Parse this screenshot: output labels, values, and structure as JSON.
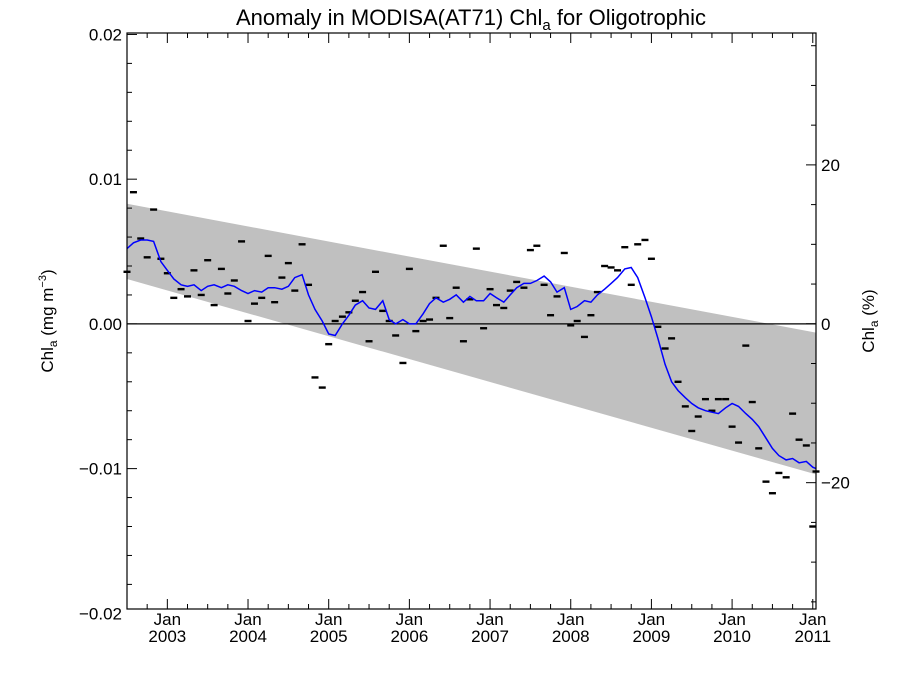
{
  "chart_data": {
    "type": "scatter",
    "title": {
      "main": "Anomaly in MODISA(AT71) Chl",
      "sub": "a",
      "tail": " for Oligotrophic"
    },
    "ylabel": {
      "main": "Chl",
      "sub": "a",
      "tail": " (mg m",
      "sup": "−3",
      "end": ")"
    },
    "y2label": {
      "main": "Chl",
      "sub": "a",
      "tail": " (%)"
    },
    "ylim": [
      -0.0197,
      0.0201
    ],
    "y2lim": [
      -35.9,
      36.6
    ],
    "xlim": [
      2002.5,
      2011.04
    ],
    "grid": false,
    "yticks": [
      {
        "value": 0.02,
        "label": "0.02"
      },
      {
        "value": 0.01,
        "label": "0.01"
      },
      {
        "value": 0.0,
        "label": "0.00"
      },
      {
        "value": -0.01,
        "label": "−0.01"
      },
      {
        "value": -0.02,
        "label": "−0.02"
      }
    ],
    "y2ticks": [
      {
        "value": 20,
        "label": "20"
      },
      {
        "value": 0,
        "label": "0"
      },
      {
        "value": -20,
        "label": "−20"
      }
    ],
    "xticks": [
      {
        "value": 2003.0,
        "top": "Jan",
        "bottom": "2003"
      },
      {
        "value": 2004.0,
        "top": "Jan",
        "bottom": "2004"
      },
      {
        "value": 2005.0,
        "top": "Jan",
        "bottom": "2005"
      },
      {
        "value": 2006.0,
        "top": "Jan",
        "bottom": "2006"
      },
      {
        "value": 2007.0,
        "top": "Jan",
        "bottom": "2007"
      },
      {
        "value": 2008.0,
        "top": "Jan",
        "bottom": "2008"
      },
      {
        "value": 2009.0,
        "top": "Jan",
        "bottom": "2009"
      },
      {
        "value": 2010.0,
        "top": "Jan",
        "bottom": "2010"
      },
      {
        "value": 2011.0,
        "top": "Jan",
        "bottom": "2011"
      }
    ],
    "band": {
      "x": [
        2002.5,
        2011.04
      ],
      "upper": [
        0.0083,
        -0.0006
      ],
      "lower": [
        0.0031,
        -0.0104
      ],
      "color": "#c0c0c0"
    },
    "zero_line": {
      "y": 0.0,
      "color": "#000000"
    },
    "colors": {
      "smooth": "#0000ff",
      "points": "#000000",
      "frame": "#000000"
    },
    "series": [
      {
        "type": "scatter",
        "x": [
          2002.5,
          2002.58,
          2002.67,
          2002.75,
          2002.83,
          2002.92,
          2003.0,
          2003.08,
          2003.17,
          2003.25,
          2003.33,
          2003.42,
          2003.5,
          2003.58,
          2003.67,
          2003.75,
          2003.83,
          2003.92,
          2004.0,
          2004.08,
          2004.17,
          2004.25,
          2004.33,
          2004.42,
          2004.5,
          2004.58,
          2004.67,
          2004.75,
          2004.83,
          2004.92,
          2005.0,
          2005.08,
          2005.17,
          2005.25,
          2005.33,
          2005.42,
          2005.5,
          2005.58,
          2005.67,
          2005.75,
          2005.83,
          2005.92,
          2006.0,
          2006.08,
          2006.17,
          2006.25,
          2006.33,
          2006.42,
          2006.5,
          2006.58,
          2006.67,
          2006.75,
          2006.83,
          2006.92,
          2007.0,
          2007.08,
          2007.17,
          2007.25,
          2007.33,
          2007.42,
          2007.5,
          2007.58,
          2007.67,
          2007.75,
          2007.83,
          2007.92,
          2008.0,
          2008.08,
          2008.17,
          2008.25,
          2008.33,
          2008.42,
          2008.5,
          2008.58,
          2008.67,
          2008.75,
          2008.83,
          2008.92,
          2009.0,
          2009.08,
          2009.17,
          2009.25,
          2009.33,
          2009.42,
          2009.5,
          2009.58,
          2009.67,
          2009.75,
          2009.83,
          2009.92,
          2010.0,
          2010.08,
          2010.17,
          2010.25,
          2010.33,
          2010.42,
          2010.5,
          2010.58,
          2010.67,
          2010.75,
          2010.83,
          2010.92,
          2011.0,
          2011.04
        ],
        "y": [
          0.0036,
          0.0091,
          0.0059,
          0.0046,
          0.0079,
          0.0045,
          0.0035,
          0.0018,
          0.0024,
          0.0019,
          0.0037,
          0.002,
          0.0044,
          0.0013,
          0.0038,
          0.0021,
          0.003,
          0.0057,
          0.0002,
          0.0014,
          0.0018,
          0.0047,
          0.0015,
          0.0032,
          0.0042,
          0.0023,
          0.0055,
          0.0027,
          -0.0037,
          -0.0044,
          -0.0014,
          0.0002,
          0.0005,
          0.0008,
          0.0016,
          0.0022,
          -0.0012,
          0.0036,
          0.0009,
          0.0002,
          -0.0008,
          -0.0027,
          0.0038,
          -0.0005,
          0.0002,
          0.0003,
          0.0018,
          0.0054,
          0.0004,
          0.0025,
          -0.0012,
          0.0017,
          0.0052,
          -0.0003,
          0.0024,
          0.0013,
          0.0011,
          0.0023,
          0.0029,
          0.0025,
          0.0051,
          0.0054,
          0.0027,
          0.0006,
          0.0019,
          0.0049,
          -0.0001,
          0.0002,
          -0.0009,
          0.0006,
          0.0022,
          0.004,
          0.0039,
          0.0037,
          0.0053,
          0.0027,
          0.0055,
          0.0058,
          0.0045,
          -0.0002,
          -0.0017,
          -0.001,
          -0.004,
          -0.0057,
          -0.0074,
          -0.0064,
          -0.0052,
          -0.006,
          -0.0052,
          -0.0052,
          -0.0071,
          -0.0082,
          -0.0015,
          -0.0054,
          -0.0086,
          -0.0109,
          -0.0117,
          -0.0103,
          -0.0106,
          -0.0062,
          -0.008,
          -0.0084,
          -0.014,
          -0.0102
        ]
      },
      {
        "type": "line",
        "x": [
          2002.5,
          2002.58,
          2002.67,
          2002.75,
          2002.83,
          2002.92,
          2003.0,
          2003.08,
          2003.17,
          2003.25,
          2003.33,
          2003.42,
          2003.5,
          2003.58,
          2003.67,
          2003.75,
          2003.83,
          2003.92,
          2004.0,
          2004.08,
          2004.17,
          2004.25,
          2004.33,
          2004.42,
          2004.5,
          2004.58,
          2004.67,
          2004.75,
          2004.83,
          2004.92,
          2005.0,
          2005.08,
          2005.17,
          2005.25,
          2005.33,
          2005.42,
          2005.5,
          2005.58,
          2005.67,
          2005.75,
          2005.83,
          2005.92,
          2006.0,
          2006.08,
          2006.17,
          2006.25,
          2006.33,
          2006.42,
          2006.5,
          2006.58,
          2006.67,
          2006.75,
          2006.83,
          2006.92,
          2007.0,
          2007.08,
          2007.17,
          2007.25,
          2007.33,
          2007.42,
          2007.5,
          2007.58,
          2007.67,
          2007.75,
          2007.83,
          2007.92,
          2008.0,
          2008.08,
          2008.17,
          2008.25,
          2008.33,
          2008.42,
          2008.5,
          2008.58,
          2008.67,
          2008.75,
          2008.83,
          2008.92,
          2009.0,
          2009.08,
          2009.17,
          2009.25,
          2009.33,
          2009.42,
          2009.5,
          2009.58,
          2009.67,
          2009.75,
          2009.83,
          2009.92,
          2010.0,
          2010.08,
          2010.17,
          2010.25,
          2010.33,
          2010.42,
          2010.5,
          2010.58,
          2010.67,
          2010.75,
          2010.83,
          2010.92,
          2011.0,
          2011.04
        ],
        "y": [
          0.0052,
          0.0056,
          0.0058,
          0.0058,
          0.0057,
          0.0043,
          0.0037,
          0.0031,
          0.0027,
          0.0026,
          0.0027,
          0.0023,
          0.0026,
          0.0027,
          0.0025,
          0.0027,
          0.0026,
          0.0023,
          0.0021,
          0.0023,
          0.0022,
          0.0025,
          0.0025,
          0.0024,
          0.0026,
          0.0032,
          0.0034,
          0.002,
          0.001,
          0.0002,
          -0.0007,
          -0.0008,
          0.0,
          0.0006,
          0.0013,
          0.0016,
          0.0011,
          0.001,
          0.0016,
          0.0003,
          0.0,
          0.0003,
          0.0,
          0.0,
          0.0007,
          0.0014,
          0.0018,
          0.0015,
          0.0017,
          0.002,
          0.0015,
          0.0019,
          0.0016,
          0.0016,
          0.0021,
          0.0018,
          0.0015,
          0.002,
          0.0025,
          0.0028,
          0.0028,
          0.003,
          0.0033,
          0.0029,
          0.0022,
          0.0025,
          0.001,
          0.0012,
          0.0016,
          0.0015,
          0.002,
          0.0024,
          0.0028,
          0.0032,
          0.0038,
          0.0039,
          0.0032,
          0.0018,
          0.0005,
          -0.001,
          -0.0028,
          -0.004,
          -0.0046,
          -0.0051,
          -0.0055,
          -0.0058,
          -0.006,
          -0.0061,
          -0.0062,
          -0.0058,
          -0.0055,
          -0.0057,
          -0.0062,
          -0.0066,
          -0.0071,
          -0.0079,
          -0.0086,
          -0.0091,
          -0.0094,
          -0.0093,
          -0.0096,
          -0.0095,
          -0.0099,
          -0.01
        ]
      }
    ]
  }
}
